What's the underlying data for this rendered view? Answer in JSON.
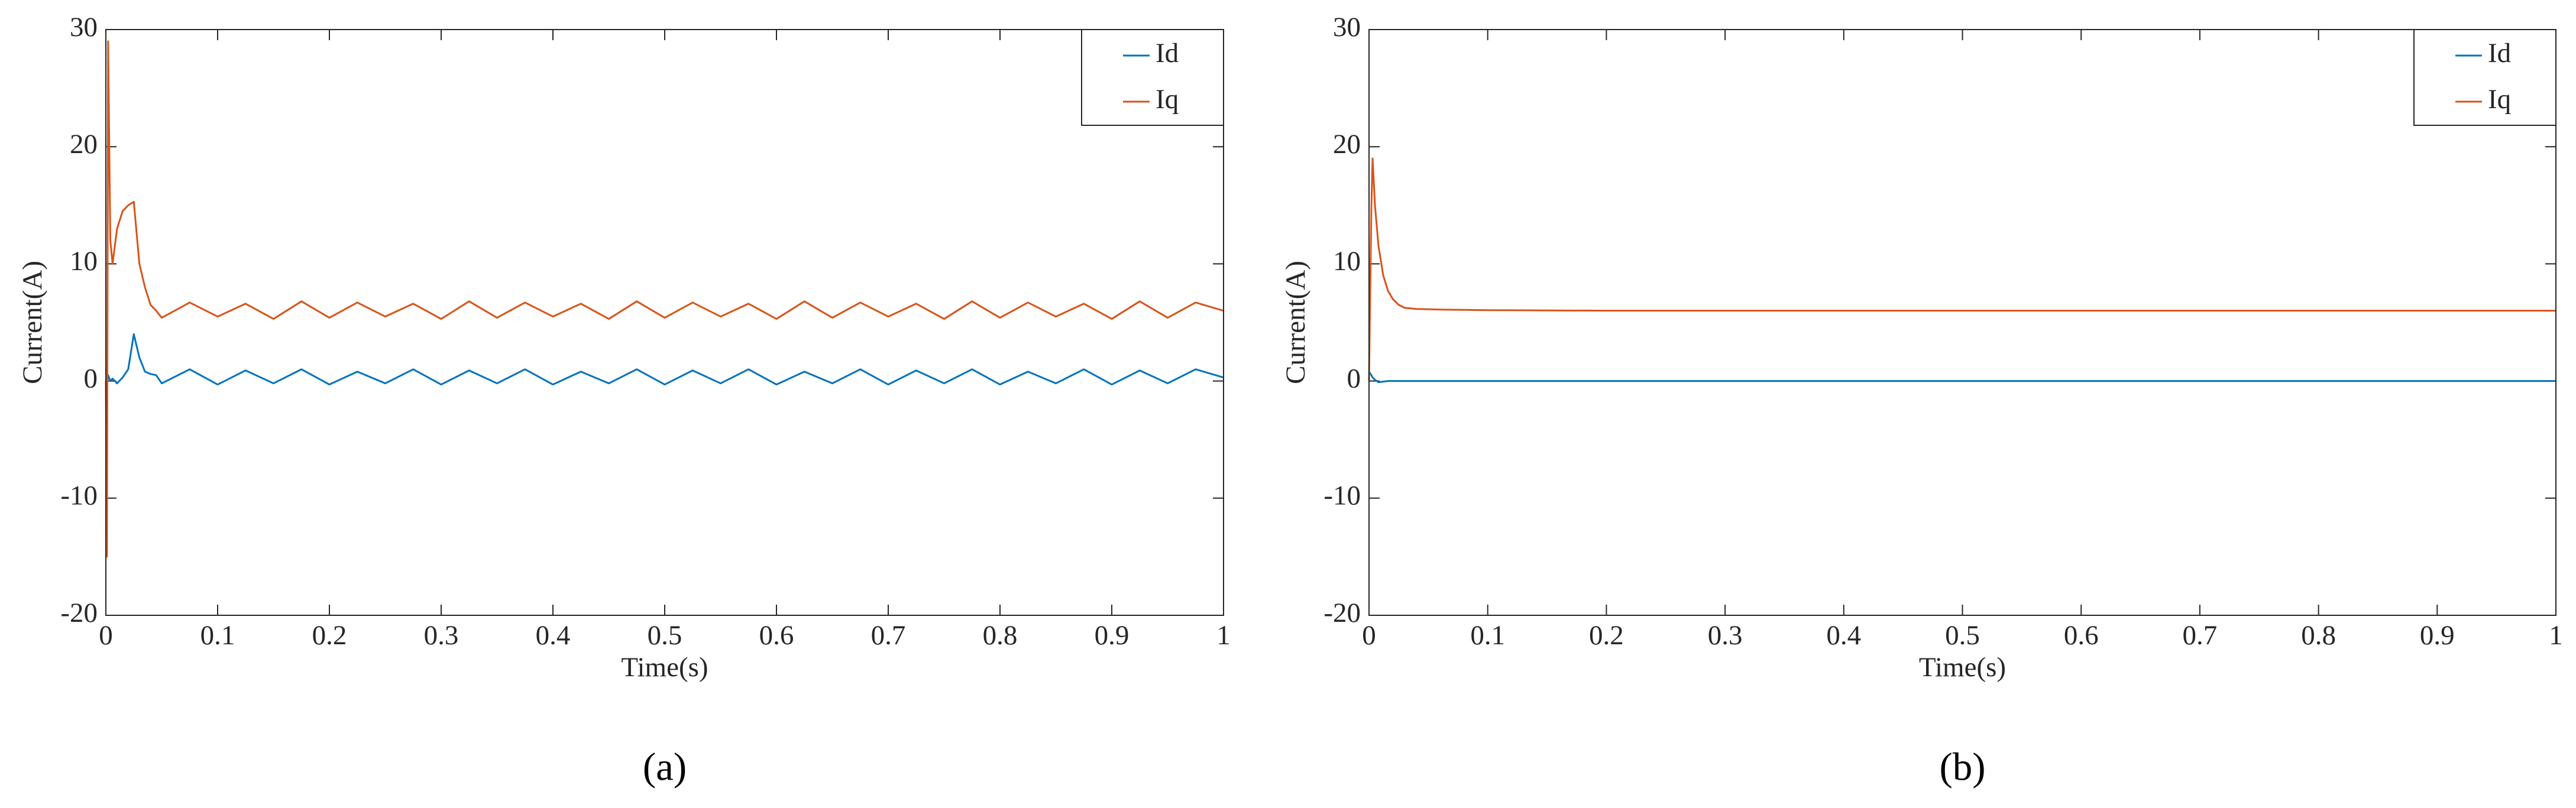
{
  "chart_data": [
    {
      "type": "line",
      "caption": "(a)",
      "x_label": "Time(s)",
      "y_label": "Current(A)",
      "x": [
        0,
        0.001,
        0.002,
        0.004,
        0.006,
        0.01,
        0.015,
        0.02,
        0.025,
        0.03,
        0.035,
        0.04,
        0.045,
        0.05,
        0.075,
        0.1,
        0.125,
        0.15,
        0.175,
        0.2,
        0.225,
        0.25,
        0.275,
        0.3,
        0.325,
        0.35,
        0.375,
        0.4,
        0.425,
        0.45,
        0.475,
        0.5,
        0.525,
        0.55,
        0.575,
        0.6,
        0.625,
        0.65,
        0.675,
        0.7,
        0.725,
        0.75,
        0.775,
        0.8,
        0.825,
        0.85,
        0.875,
        0.9,
        0.925,
        0.95,
        0.975,
        1
      ],
      "series": [
        {
          "name": "Id",
          "color": "#0072bd",
          "values": [
            0,
            -0.3,
            0.5,
            0,
            0.2,
            -0.2,
            0.3,
            1,
            4,
            2,
            0.8,
            0.6,
            0.5,
            -0.2,
            1,
            -0.3,
            0.9,
            -0.2,
            1,
            -0.3,
            0.8,
            -0.2,
            1,
            -0.3,
            0.9,
            -0.2,
            1,
            -0.3,
            0.8,
            -0.2,
            1,
            -0.3,
            0.9,
            -0.2,
            1,
            -0.3,
            0.8,
            -0.2,
            1,
            -0.3,
            0.9,
            -0.2,
            1,
            -0.3,
            0.8,
            -0.2,
            1,
            -0.3,
            0.9,
            -0.2,
            1,
            0.3
          ]
        },
        {
          "name": "Iq",
          "color": "#d95319",
          "values": [
            0,
            -15,
            29,
            12,
            10,
            13,
            14.5,
            15,
            15.3,
            10,
            8,
            6.5,
            6,
            5.4,
            6.7,
            5.5,
            6.6,
            5.3,
            6.8,
            5.4,
            6.7,
            5.5,
            6.6,
            5.3,
            6.8,
            5.4,
            6.7,
            5.5,
            6.6,
            5.3,
            6.8,
            5.4,
            6.7,
            5.5,
            6.6,
            5.3,
            6.8,
            5.4,
            6.7,
            5.5,
            6.6,
            5.3,
            6.8,
            5.4,
            6.7,
            5.5,
            6.6,
            5.3,
            6.8,
            5.4,
            6.7,
            6
          ]
        }
      ],
      "xlim": [
        0,
        1
      ],
      "ylim": [
        -20,
        30
      ],
      "xticks": [
        0,
        0.1,
        0.2,
        0.3,
        0.4,
        0.5,
        0.6,
        0.7,
        0.8,
        0.9,
        1
      ],
      "yticks": [
        -20,
        -10,
        0,
        10,
        20,
        30
      ],
      "legend": "upper right"
    },
    {
      "type": "line",
      "caption": "(b)",
      "x_label": "Time(s)",
      "y_label": "Current(A)",
      "x": [
        0,
        0.002,
        0.003,
        0.005,
        0.008,
        0.012,
        0.016,
        0.02,
        0.025,
        0.03,
        0.04,
        0.06,
        0.1,
        0.2,
        0.4,
        0.6,
        0.8,
        1
      ],
      "series": [
        {
          "name": "Id",
          "color": "#0072bd",
          "values": [
            0.8,
            0.5,
            0.3,
            0.1,
            -0.1,
            -0.05,
            0,
            0,
            0,
            0,
            0,
            0,
            0,
            0,
            0,
            0,
            0,
            0
          ]
        },
        {
          "name": "Iq",
          "color": "#d95319",
          "values": [
            0,
            15,
            19,
            15,
            11.5,
            9,
            7.7,
            7,
            6.5,
            6.25,
            6.15,
            6.1,
            6.05,
            6,
            6,
            6,
            6,
            6
          ]
        }
      ],
      "xlim": [
        0,
        1
      ],
      "ylim": [
        -20,
        30
      ],
      "xticks": [
        0,
        0.1,
        0.2,
        0.3,
        0.4,
        0.5,
        0.6,
        0.7,
        0.8,
        0.9,
        1
      ],
      "yticks": [
        -20,
        -10,
        0,
        10,
        20,
        30
      ],
      "legend": "upper right"
    }
  ]
}
